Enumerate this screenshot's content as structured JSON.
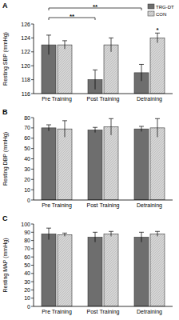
{
  "chart_data": [
    {
      "type": "bar",
      "panel": "A",
      "ylabel": "Resting SBP (mmHg)",
      "categories": [
        "Pre Training",
        "Post Training",
        "Detraining"
      ],
      "series": [
        {
          "name": "TRG-DT",
          "color": "#6e6e6e",
          "values": [
            123,
            118,
            119
          ],
          "error": [
            1.4,
            1.4,
            1.2
          ]
        },
        {
          "name": "CON",
          "color": "#d6d6d6",
          "values": [
            123,
            123,
            124
          ],
          "error": [
            0.6,
            1.0,
            0.7
          ]
        }
      ],
      "ylim": [
        116,
        126
      ],
      "yticks": [
        116,
        118,
        120,
        122,
        124,
        126
      ],
      "grid": false,
      "legend": "top-right",
      "annotations": [
        {
          "text": "**",
          "from": "Pre Training",
          "to": "Post Training"
        },
        {
          "text": "**",
          "from": "Pre Training",
          "to": "Detraining"
        },
        {
          "text": "*",
          "category": "Detraining",
          "series": "CON"
        }
      ]
    },
    {
      "type": "bar",
      "panel": "B",
      "ylabel": "Resting DBP (mmHg)",
      "categories": [
        "Pre Training",
        "Post Training",
        "Detraining"
      ],
      "series": [
        {
          "color": "#6e6e6e",
          "values": [
            70,
            68,
            69
          ],
          "error": [
            3,
            2.5,
            2.5
          ]
        },
        {
          "color": "#d6d6d6",
          "values": [
            69,
            71,
            70
          ],
          "error": [
            8,
            8,
            9
          ]
        }
      ],
      "ylim": [
        0,
        80
      ],
      "yticks": [
        0,
        10,
        20,
        30,
        40,
        50,
        60,
        70,
        80
      ],
      "grid": false
    },
    {
      "type": "bar",
      "panel": "C",
      "ylabel": "Resting MAP (mmHg)",
      "categories": [
        "Pre Training",
        "Post Training",
        "Detraining"
      ],
      "series": [
        {
          "color": "#6e6e6e",
          "values": [
            88,
            84,
            84
          ],
          "error": [
            7,
            6,
            6
          ]
        },
        {
          "color": "#d6d6d6",
          "values": [
            87,
            88,
            88
          ],
          "error": [
            2,
            3,
            3
          ]
        }
      ],
      "ylim": [
        0,
        100
      ],
      "yticks": [
        0,
        10,
        20,
        30,
        40,
        50,
        60,
        70,
        80,
        90,
        100
      ],
      "grid": false
    }
  ]
}
